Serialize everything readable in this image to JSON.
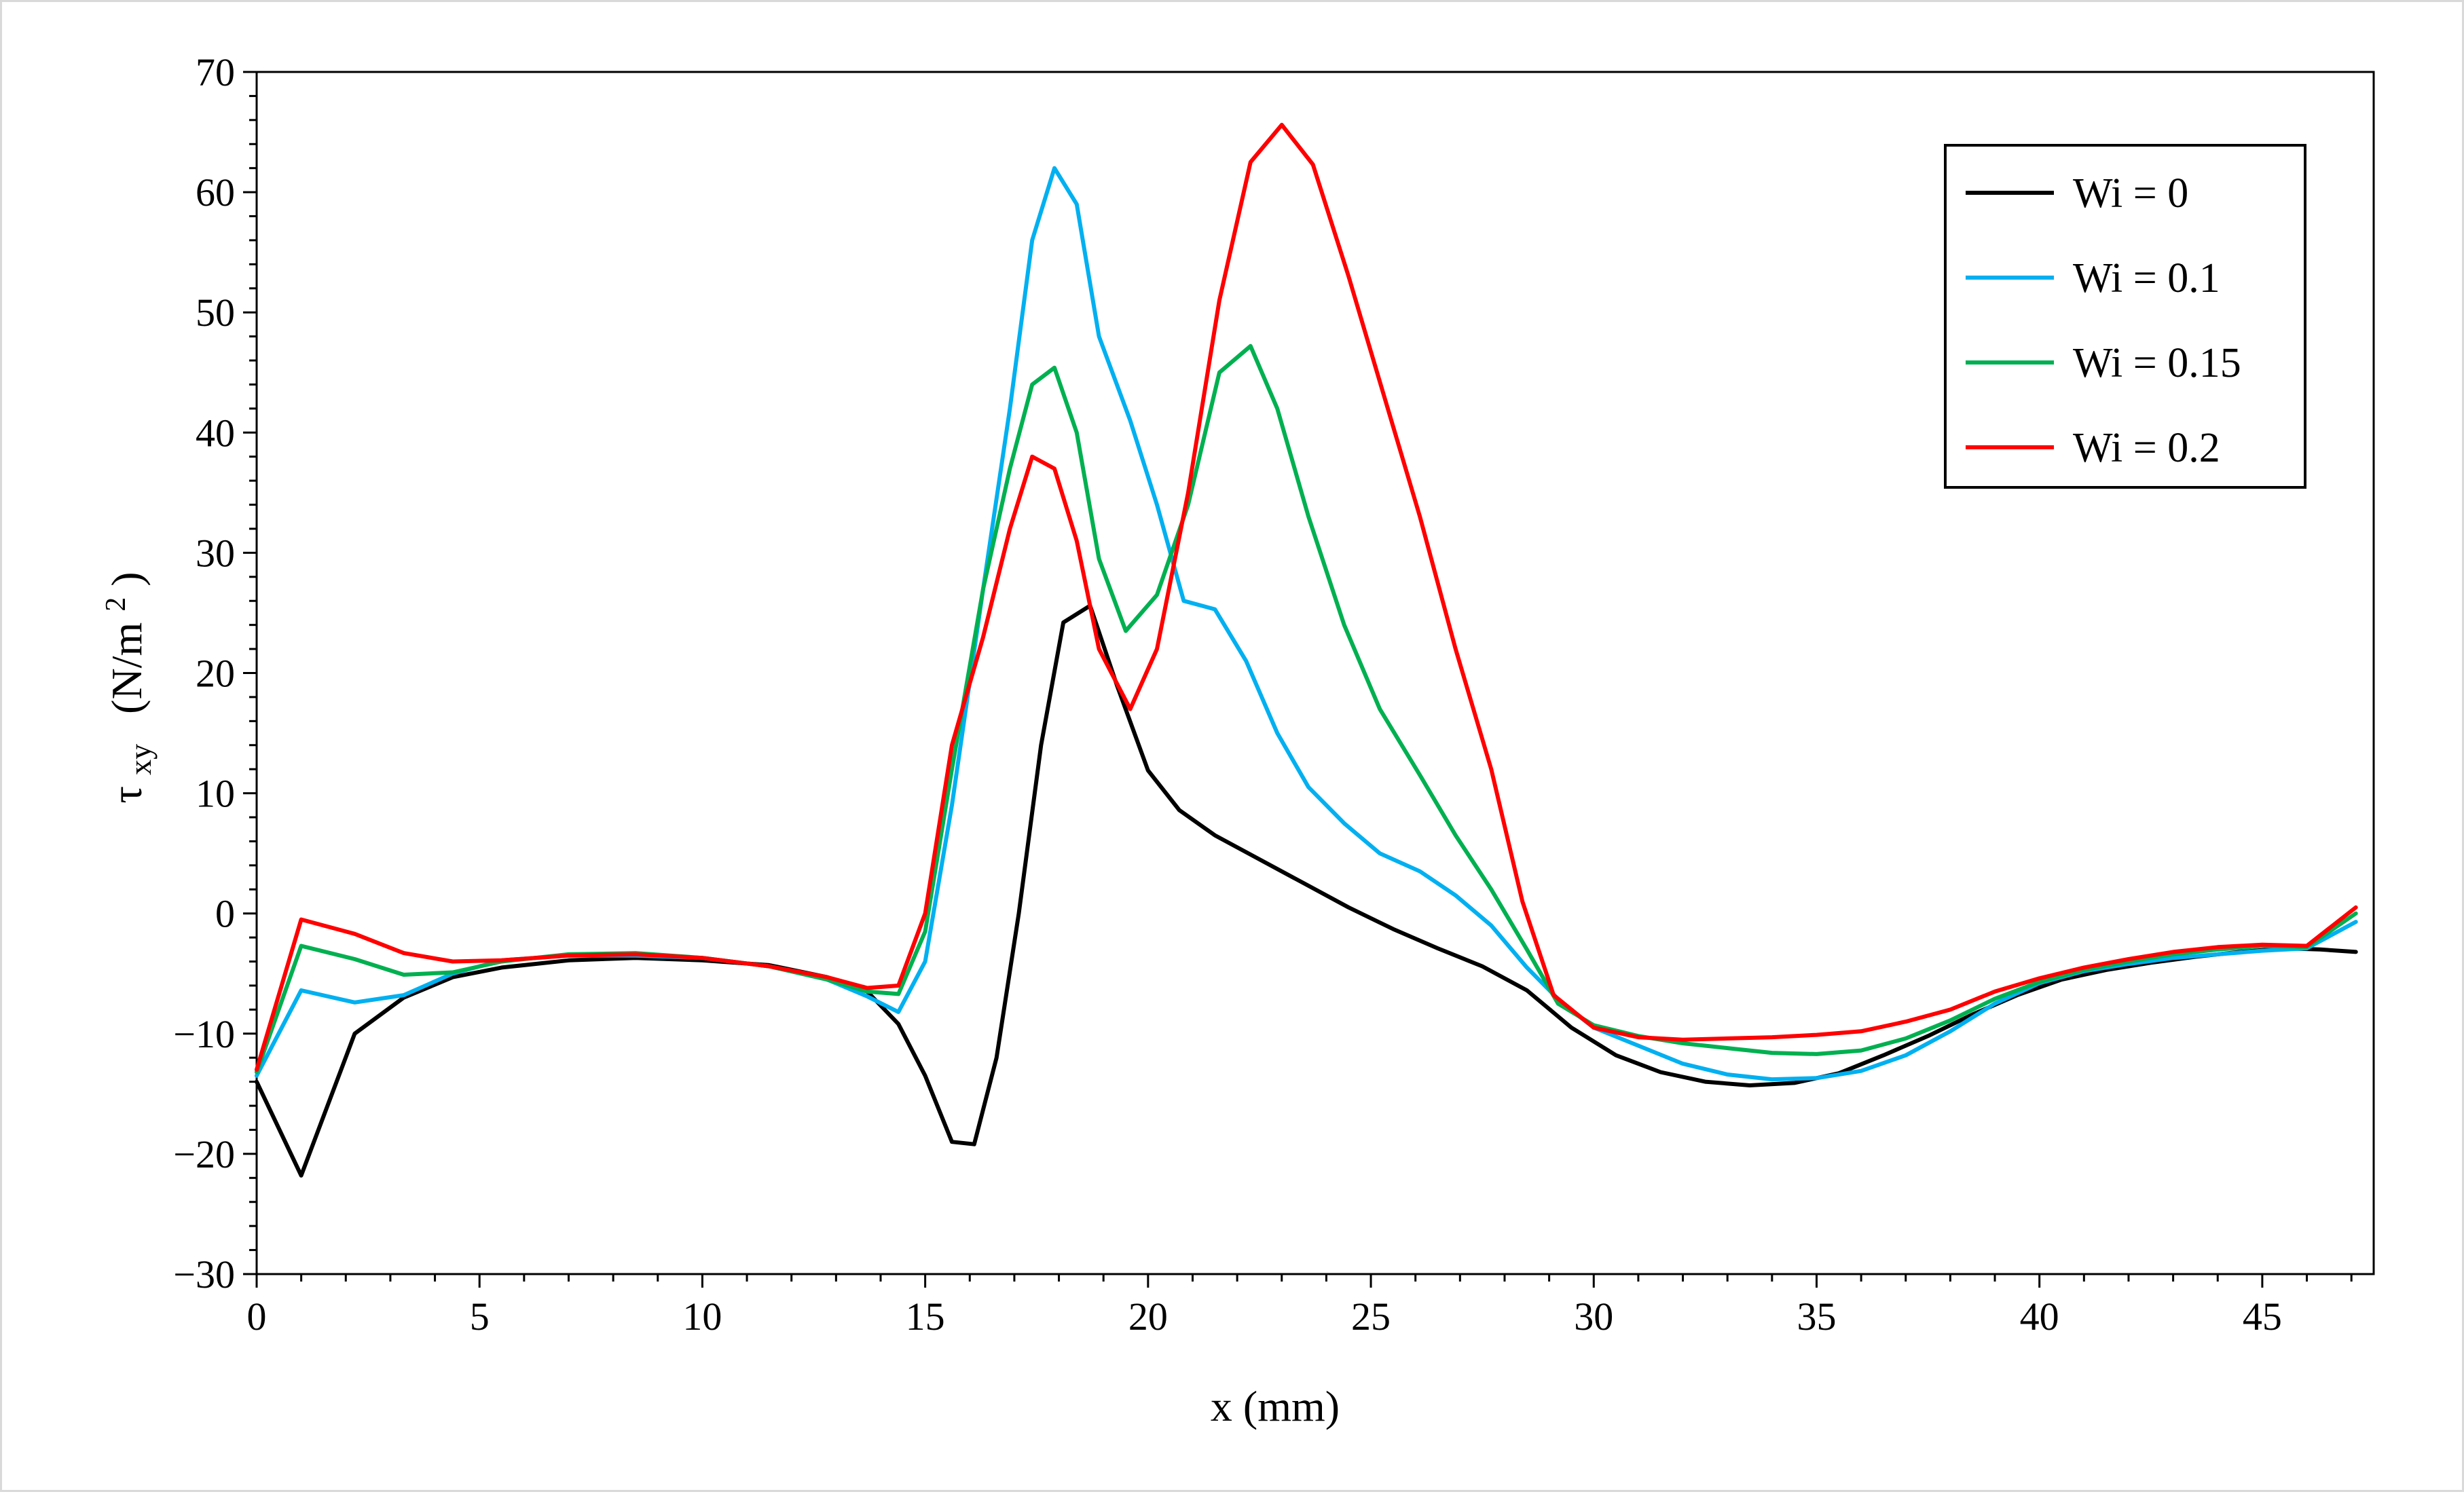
{
  "chart_data": {
    "type": "line",
    "xlabel": "x (mm)",
    "ylabel": {
      "symbol": "τ",
      "subscript": "xy",
      "unit_open": "(N/m",
      "superscript": "2",
      "unit_close": ")"
    },
    "xlim": [
      0,
      47.5
    ],
    "ylim": [
      -30,
      70
    ],
    "xticks": [
      0,
      5,
      10,
      15,
      20,
      25,
      30,
      35,
      40,
      45
    ],
    "yticks": [
      -30,
      -20,
      -10,
      0,
      10,
      20,
      30,
      40,
      50,
      60,
      70
    ],
    "xtick_labels": [
      "0",
      "5",
      "10",
      "15",
      "20",
      "25",
      "30",
      "35",
      "40",
      "45"
    ],
    "ytick_labels": [
      "−30",
      "−20",
      "−10",
      "0",
      "10",
      "20",
      "30",
      "40",
      "50",
      "60",
      "70"
    ],
    "grid": false,
    "legend_position": "top-right",
    "series": [
      {
        "name": "Wi = 0",
        "color": "#000000",
        "points": [
          [
            0,
            -14
          ],
          [
            1,
            -21.8
          ],
          [
            2.2,
            -10
          ],
          [
            3.3,
            -7
          ],
          [
            4.4,
            -5.3
          ],
          [
            5.5,
            -4.5
          ],
          [
            7,
            -3.9
          ],
          [
            8.5,
            -3.7
          ],
          [
            10,
            -3.9
          ],
          [
            11.5,
            -4.3
          ],
          [
            12.8,
            -5.3
          ],
          [
            13.7,
            -6.5
          ],
          [
            14.4,
            -9.2
          ],
          [
            15,
            -13.5
          ],
          [
            15.6,
            -19
          ],
          [
            16.1,
            -19.2
          ],
          [
            16.6,
            -12
          ],
          [
            17.1,
            0
          ],
          [
            17.6,
            14
          ],
          [
            18.1,
            24.2
          ],
          [
            18.7,
            25.6
          ],
          [
            19.3,
            19
          ],
          [
            20,
            11.9
          ],
          [
            20.7,
            8.6
          ],
          [
            21.5,
            6.5
          ],
          [
            22.5,
            4.5
          ],
          [
            23.5,
            2.5
          ],
          [
            24.5,
            0.5
          ],
          [
            25.5,
            -1.3
          ],
          [
            26.5,
            -2.9
          ],
          [
            27.5,
            -4.4
          ],
          [
            28.5,
            -6.4
          ],
          [
            29.5,
            -9.5
          ],
          [
            30.5,
            -11.8
          ],
          [
            31.5,
            -13.2
          ],
          [
            32.5,
            -14
          ],
          [
            33.5,
            -14.3
          ],
          [
            34.5,
            -14.1
          ],
          [
            35.5,
            -13.3
          ],
          [
            36.5,
            -11.8
          ],
          [
            37.5,
            -10.2
          ],
          [
            38.5,
            -8.4
          ],
          [
            39.5,
            -6.8
          ],
          [
            40.5,
            -5.5
          ],
          [
            41.5,
            -4.7
          ],
          [
            42.5,
            -4.1
          ],
          [
            43.5,
            -3.6
          ],
          [
            44.5,
            -3.2
          ],
          [
            45.5,
            -2.9
          ],
          [
            46.3,
            -3
          ],
          [
            47.1,
            -3.2
          ]
        ]
      },
      {
        "name": "Wi = 0.1",
        "color": "#00b0f0",
        "points": [
          [
            0,
            -13.5
          ],
          [
            1,
            -6.4
          ],
          [
            2.2,
            -7.4
          ],
          [
            3.3,
            -6.8
          ],
          [
            4.4,
            -5
          ],
          [
            5.5,
            -3.9
          ],
          [
            7,
            -3.5
          ],
          [
            8.5,
            -3.5
          ],
          [
            10,
            -3.7
          ],
          [
            11.5,
            -4.4
          ],
          [
            12.8,
            -5.5
          ],
          [
            13.7,
            -6.9
          ],
          [
            14.4,
            -8.2
          ],
          [
            15,
            -4
          ],
          [
            15.6,
            9
          ],
          [
            16.3,
            27
          ],
          [
            16.9,
            42
          ],
          [
            17.4,
            56
          ],
          [
            17.9,
            62
          ],
          [
            18.4,
            59
          ],
          [
            18.9,
            48
          ],
          [
            19.6,
            41
          ],
          [
            20.2,
            34
          ],
          [
            20.8,
            26
          ],
          [
            21.5,
            25.3
          ],
          [
            22.2,
            21
          ],
          [
            22.9,
            15
          ],
          [
            23.6,
            10.5
          ],
          [
            24.4,
            7.5
          ],
          [
            25.2,
            5
          ],
          [
            26.1,
            3.5
          ],
          [
            26.9,
            1.5
          ],
          [
            27.7,
            -1
          ],
          [
            28.5,
            -4.5
          ],
          [
            29.3,
            -7.5
          ],
          [
            30,
            -9.5
          ],
          [
            31,
            -11
          ],
          [
            32,
            -12.5
          ],
          [
            33,
            -13.4
          ],
          [
            34,
            -13.8
          ],
          [
            35,
            -13.7
          ],
          [
            36,
            -13.1
          ],
          [
            37,
            -11.8
          ],
          [
            38,
            -9.8
          ],
          [
            39,
            -7.5
          ],
          [
            40,
            -5.8
          ],
          [
            41,
            -4.8
          ],
          [
            42,
            -4.2
          ],
          [
            43,
            -3.7
          ],
          [
            44,
            -3.4
          ],
          [
            45,
            -3.1
          ],
          [
            46,
            -2.9
          ],
          [
            47.1,
            -0.7
          ]
        ]
      },
      {
        "name": "Wi = 0.15",
        "color": "#00b050",
        "points": [
          [
            0,
            -13.2
          ],
          [
            1,
            -2.7
          ],
          [
            2.2,
            -3.8
          ],
          [
            3.3,
            -5.1
          ],
          [
            4.4,
            -4.9
          ],
          [
            5.5,
            -4
          ],
          [
            7,
            -3.4
          ],
          [
            8.5,
            -3.3
          ],
          [
            10,
            -3.7
          ],
          [
            11.5,
            -4.4
          ],
          [
            12.8,
            -5.5
          ],
          [
            13.7,
            -6.5
          ],
          [
            14.4,
            -6.7
          ],
          [
            15,
            -1.5
          ],
          [
            15.6,
            12
          ],
          [
            16.3,
            27
          ],
          [
            16.9,
            37
          ],
          [
            17.4,
            44
          ],
          [
            17.9,
            45.4
          ],
          [
            18.4,
            40
          ],
          [
            18.9,
            29.5
          ],
          [
            19.5,
            23.5
          ],
          [
            20.2,
            26.5
          ],
          [
            20.9,
            34
          ],
          [
            21.6,
            45
          ],
          [
            22.3,
            47.2
          ],
          [
            22.9,
            42
          ],
          [
            23.6,
            33
          ],
          [
            24.4,
            24
          ],
          [
            25.2,
            17
          ],
          [
            26.1,
            11.5
          ],
          [
            26.9,
            6.5
          ],
          [
            27.7,
            2
          ],
          [
            28.5,
            -3
          ],
          [
            29.2,
            -7.5
          ],
          [
            30,
            -9.3
          ],
          [
            31,
            -10.2
          ],
          [
            32,
            -10.8
          ],
          [
            33,
            -11.2
          ],
          [
            34,
            -11.6
          ],
          [
            35,
            -11.7
          ],
          [
            36,
            -11.4
          ],
          [
            37,
            -10.4
          ],
          [
            38,
            -8.9
          ],
          [
            39,
            -7.1
          ],
          [
            40,
            -5.7
          ],
          [
            41,
            -4.7
          ],
          [
            42,
            -4
          ],
          [
            43,
            -3.4
          ],
          [
            44,
            -3
          ],
          [
            45,
            -2.7
          ],
          [
            46,
            -2.8
          ],
          [
            47.1,
            0
          ]
        ]
      },
      {
        "name": "Wi = 0.2",
        "color": "#ff0000",
        "points": [
          [
            0,
            -13
          ],
          [
            1,
            -0.5
          ],
          [
            2.2,
            -1.7
          ],
          [
            3.3,
            -3.3
          ],
          [
            4.4,
            -4
          ],
          [
            5.5,
            -3.9
          ],
          [
            7,
            -3.5
          ],
          [
            8.5,
            -3.4
          ],
          [
            10,
            -3.7
          ],
          [
            11.5,
            -4.4
          ],
          [
            12.8,
            -5.3
          ],
          [
            13.7,
            -6.2
          ],
          [
            14.4,
            -6
          ],
          [
            15,
            0
          ],
          [
            15.6,
            14
          ],
          [
            16.3,
            23
          ],
          [
            16.9,
            32
          ],
          [
            17.4,
            38
          ],
          [
            17.9,
            37
          ],
          [
            18.4,
            31
          ],
          [
            18.9,
            22
          ],
          [
            19.6,
            17
          ],
          [
            20.2,
            22
          ],
          [
            20.9,
            35
          ],
          [
            21.6,
            51
          ],
          [
            22.3,
            62.5
          ],
          [
            23,
            65.6
          ],
          [
            23.7,
            62.3
          ],
          [
            24.5,
            53
          ],
          [
            25.3,
            43
          ],
          [
            26.1,
            33
          ],
          [
            26.9,
            22
          ],
          [
            27.7,
            12
          ],
          [
            28.4,
            1
          ],
          [
            29.1,
            -6.8
          ],
          [
            30,
            -9.5
          ],
          [
            31,
            -10.3
          ],
          [
            32,
            -10.5
          ],
          [
            33,
            -10.4
          ],
          [
            34,
            -10.3
          ],
          [
            35,
            -10.1
          ],
          [
            36,
            -9.8
          ],
          [
            37,
            -9
          ],
          [
            38,
            -8
          ],
          [
            39,
            -6.5
          ],
          [
            40,
            -5.4
          ],
          [
            41,
            -4.5
          ],
          [
            42,
            -3.8
          ],
          [
            43,
            -3.2
          ],
          [
            44,
            -2.8
          ],
          [
            45,
            -2.6
          ],
          [
            46,
            -2.7
          ],
          [
            47.1,
            0.5
          ]
        ]
      }
    ]
  }
}
